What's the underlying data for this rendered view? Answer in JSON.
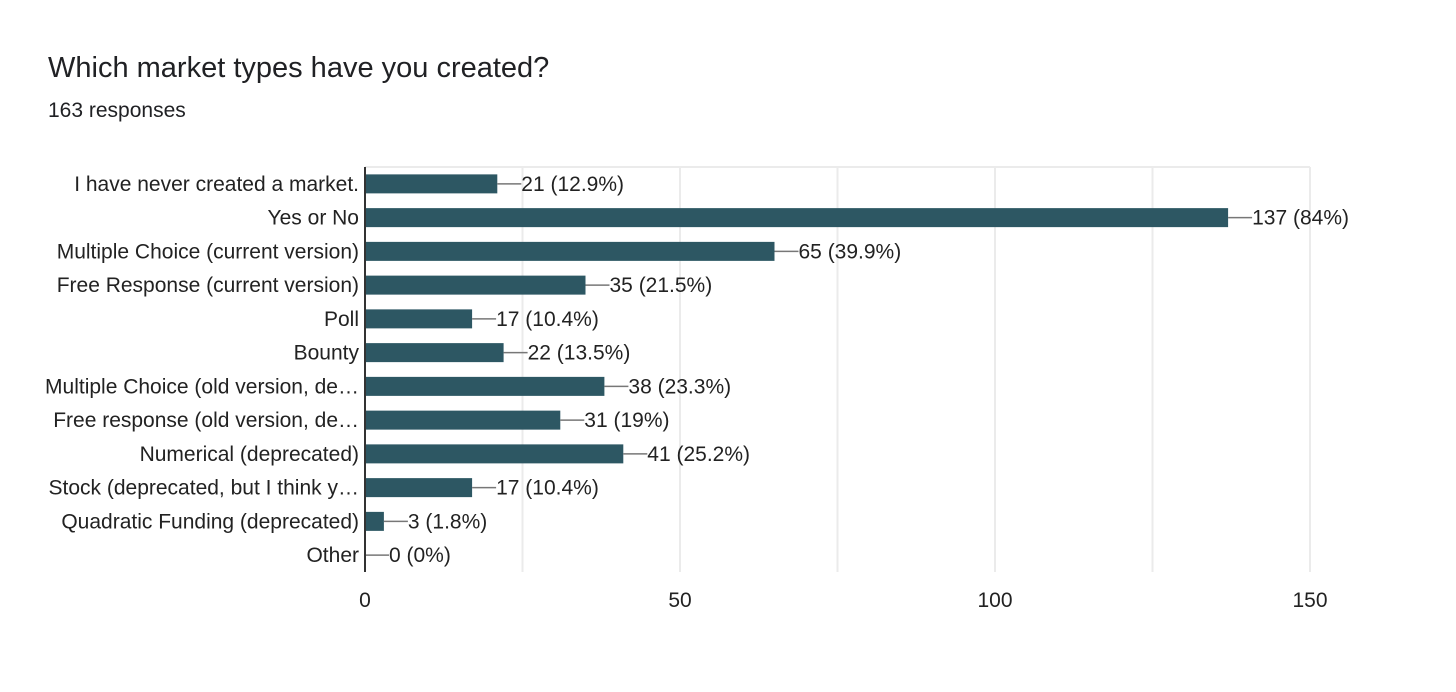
{
  "header": {
    "question": "Which market types have you created?",
    "responses": "163 responses"
  },
  "colors": {
    "bar": "#2d5763",
    "grid": "#ebebeb",
    "axis": "#333333",
    "leader": "#777777",
    "text": "#222222"
  },
  "chart_data": {
    "type": "bar",
    "orientation": "horizontal",
    "title": "Which market types have you created?",
    "subtitle": "163 responses",
    "categories": [
      "I have never created a market.",
      "Yes or No",
      "Multiple Choice (current version)",
      "Free Response (current version)",
      "Poll",
      "Bounty",
      "Multiple Choice (old version, de…",
      "Free response (old version, de…",
      "Numerical (deprecated)",
      "Stock (deprecated, but I think y…",
      "Quadratic Funding (deprecated)",
      "Other"
    ],
    "values": [
      21,
      137,
      65,
      35,
      17,
      22,
      38,
      31,
      41,
      17,
      3,
      0
    ],
    "data_labels": [
      "21 (12.9%)",
      "137 (84%)",
      "65 (39.9%)",
      "35 (21.5%)",
      "17 (10.4%)",
      "22 (13.5%)",
      "38 (23.3%)",
      "31 (19%)",
      "41 (25.2%)",
      "17 (10.4%)",
      "3 (1.8%)",
      "0 (0%)"
    ],
    "xlim": [
      0,
      150
    ],
    "xticks": [
      0,
      50,
      100,
      150
    ],
    "minor_grid": [
      25,
      75,
      125
    ],
    "grid": true,
    "xlabel": "",
    "ylabel": ""
  }
}
